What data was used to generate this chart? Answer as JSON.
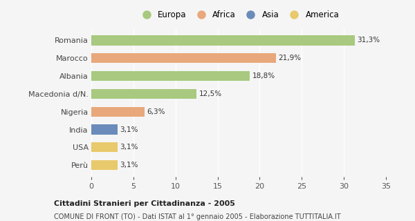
{
  "categories": [
    "Romania",
    "Marocco",
    "Albania",
    "Macedonia d/N.",
    "Nigeria",
    "India",
    "USA",
    "Perù"
  ],
  "values": [
    31.3,
    21.9,
    18.8,
    12.5,
    6.3,
    3.1,
    3.1,
    3.1
  ],
  "labels": [
    "31,3%",
    "21,9%",
    "18,8%",
    "12,5%",
    "6,3%",
    "3,1%",
    "3,1%",
    "3,1%"
  ],
  "colors": [
    "#a8c97f",
    "#e8a87c",
    "#a8c97f",
    "#a8c97f",
    "#e8a87c",
    "#6b8cba",
    "#e8c96b",
    "#e8c96b"
  ],
  "legend": [
    {
      "label": "Europa",
      "color": "#a8c97f"
    },
    {
      "label": "Africa",
      "color": "#e8a87c"
    },
    {
      "label": "Asia",
      "color": "#6b8cba"
    },
    {
      "label": "America",
      "color": "#e8c96b"
    }
  ],
  "xlim": [
    0,
    35
  ],
  "xticks": [
    0,
    5,
    10,
    15,
    20,
    25,
    30,
    35
  ],
  "title": "Cittadini Stranieri per Cittadinanza - 2005",
  "subtitle": "COMUNE DI FRONT (TO) - Dati ISTAT al 1° gennaio 2005 - Elaborazione TUTTITALIA.IT",
  "background_color": "#f5f5f5",
  "grid_color": "#ffffff",
  "bar_height": 0.55
}
